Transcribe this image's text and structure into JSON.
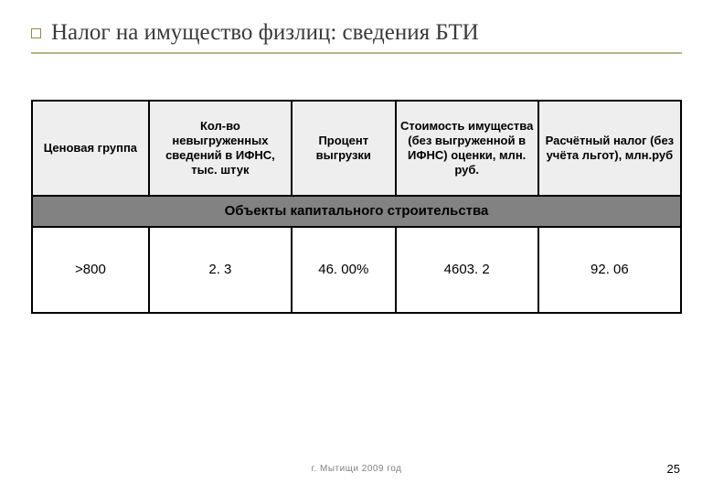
{
  "title": "Налог на имущество физлиц: сведения БТИ",
  "table": {
    "headers": {
      "c1": "Ценовая группа",
      "c2": "Кол-во невыгруженных сведений в ИФНС, тыс. штук",
      "c3": "Процент выгрузки",
      "c4": "Стоимость имущества (без выгруженной в ИФНС) оценки, млн. руб.",
      "c5": "Расчётный налог (без учёта льгот), млн.руб"
    },
    "section_label": "Объекты капитального строительства",
    "row": {
      "c1": ">800",
      "c2": "2. 3",
      "c3": "46. 00%",
      "c4": "4603. 2",
      "c5": "92. 06"
    }
  },
  "footer": "г. Мытищи 2009 год",
  "pagenum": "25",
  "colors": {
    "rule": "#b8b18a",
    "header_bg": "#eeeeee",
    "section_bg": "#828282"
  }
}
